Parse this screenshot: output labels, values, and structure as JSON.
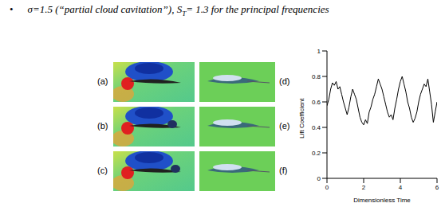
{
  "bullet": "•",
  "heading": {
    "before": "σ=1.5  (“partial cloud cavitation”), S",
    "subscript": "T",
    "after": "= 1.3 for the principal frequencies"
  },
  "panel_labels": [
    "(a)",
    "(b)",
    "(c)",
    "(d)",
    "(e)",
    "(f)"
  ],
  "chart_data": {
    "type": "line",
    "x_label": "Dimensionless Time",
    "y_label": "Lift Coefficient",
    "x": [
      0,
      0.1,
      0.2,
      0.3,
      0.4,
      0.5,
      0.6,
      0.7,
      0.8,
      0.9,
      1.0,
      1.1,
      1.2,
      1.3,
      1.4,
      1.5,
      1.6,
      1.7,
      1.8,
      1.9,
      2.0,
      2.1,
      2.2,
      2.3,
      2.4,
      2.5,
      2.6,
      2.7,
      2.8,
      2.9,
      3.0,
      3.1,
      3.2,
      3.3,
      3.4,
      3.5,
      3.6,
      3.7,
      3.8,
      3.9,
      4.0,
      4.1,
      4.2,
      4.3,
      4.4,
      4.5,
      4.6,
      4.7,
      4.8,
      4.9,
      5.0,
      5.1,
      5.2,
      5.3,
      5.4,
      5.5,
      5.6,
      5.7,
      5.8,
      5.9,
      6.0
    ],
    "values": [
      0.57,
      0.62,
      0.7,
      0.75,
      0.73,
      0.76,
      0.7,
      0.72,
      0.66,
      0.6,
      0.55,
      0.5,
      0.56,
      0.64,
      0.7,
      0.66,
      0.62,
      0.55,
      0.48,
      0.44,
      0.42,
      0.46,
      0.43,
      0.52,
      0.56,
      0.62,
      0.66,
      0.72,
      0.78,
      0.74,
      0.7,
      0.64,
      0.58,
      0.52,
      0.48,
      0.5,
      0.46,
      0.55,
      0.62,
      0.7,
      0.76,
      0.8,
      0.74,
      0.68,
      0.6,
      0.55,
      0.48,
      0.44,
      0.47,
      0.52,
      0.6,
      0.66,
      0.7,
      0.74,
      0.72,
      0.78,
      0.68,
      0.58,
      0.44,
      0.52,
      0.6
    ],
    "color": "#000000",
    "xlim": [
      0,
      6
    ],
    "xticks": [
      0,
      2,
      4,
      6
    ],
    "ylim": [
      0,
      1
    ],
    "yticks": [
      0,
      0.2,
      0.4,
      0.6,
      0.8,
      1
    ],
    "grid": false
  }
}
